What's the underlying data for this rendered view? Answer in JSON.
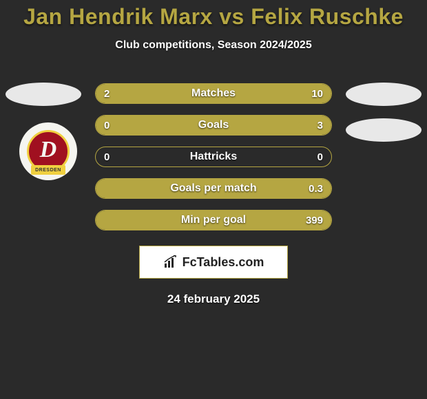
{
  "header": {
    "title": "Jan Hendrik Marx vs Felix Ruschke",
    "subtitle": "Club competitions, Season 2024/2025"
  },
  "badge": {
    "letter": "D",
    "banner": "DRESDEN",
    "bg_color": "#a01020",
    "ring_color": "#f0d040"
  },
  "stats": {
    "row_border_color": "#b5a642",
    "row_fill_color": "#b5a642",
    "rows": [
      {
        "label": "Matches",
        "left": "2",
        "right": "10",
        "left_pct": 16.7,
        "right_pct": 83.3,
        "mode": "split"
      },
      {
        "label": "Goals",
        "left": "0",
        "right": "3",
        "left_pct": 0,
        "right_pct": 100,
        "mode": "full"
      },
      {
        "label": "Hattricks",
        "left": "0",
        "right": "0",
        "left_pct": 0,
        "right_pct": 0,
        "mode": "empty"
      },
      {
        "label": "Goals per match",
        "left": "",
        "right": "0.3",
        "left_pct": 0,
        "right_pct": 100,
        "mode": "full"
      },
      {
        "label": "Min per goal",
        "left": "",
        "right": "399",
        "left_pct": 0,
        "right_pct": 100,
        "mode": "full"
      }
    ]
  },
  "brand": {
    "text": "FcTables.com",
    "icon_color": "#222222"
  },
  "footer": {
    "date": "24 february 2025"
  },
  "colors": {
    "background": "#2a2a2a",
    "accent": "#b5a642",
    "text_light": "#ffffff",
    "avatar_bg": "#e8e8e8"
  }
}
